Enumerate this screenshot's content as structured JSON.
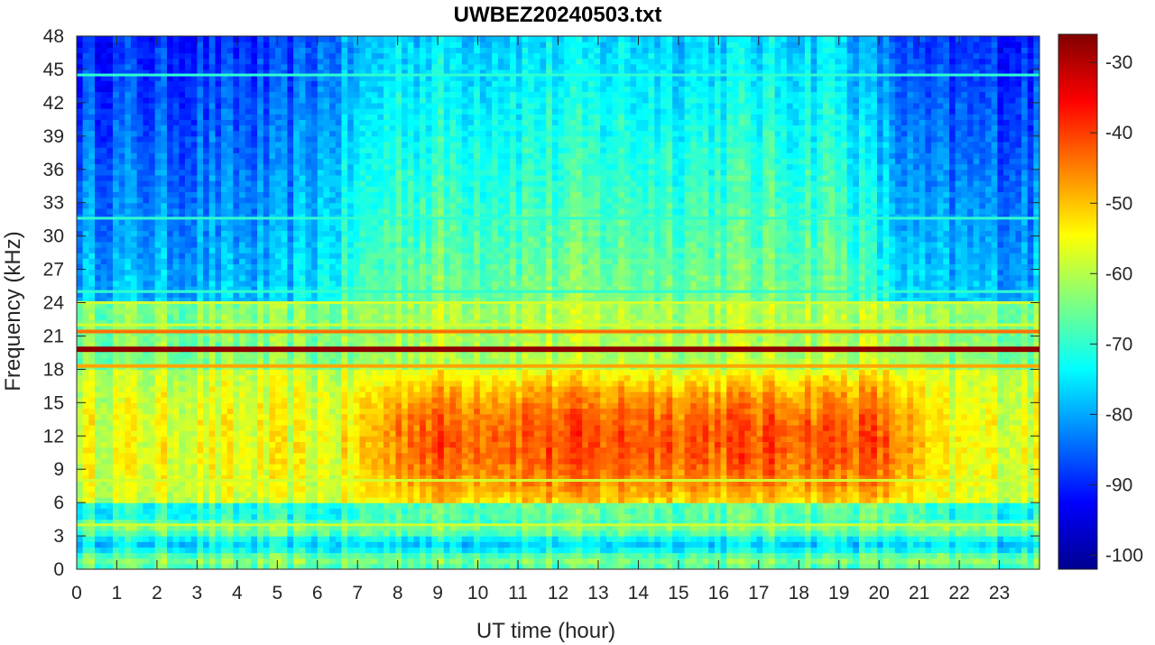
{
  "chart_data": {
    "type": "heatmap",
    "title": "UWBEZ20240503.txt",
    "xlabel": "UT time (hour)",
    "ylabel": "Frequency (kHz)",
    "xlim": [
      0,
      24
    ],
    "ylim": [
      0,
      48
    ],
    "x_ticks": [
      "0",
      "1",
      "2",
      "3",
      "4",
      "5",
      "6",
      "7",
      "8",
      "9",
      "10",
      "11",
      "12",
      "13",
      "14",
      "15",
      "16",
      "17",
      "18",
      "19",
      "20",
      "21",
      "22",
      "23"
    ],
    "y_ticks": [
      "0",
      "3",
      "6",
      "9",
      "12",
      "15",
      "18",
      "21",
      "24",
      "27",
      "30",
      "33",
      "36",
      "39",
      "42",
      "45",
      "48"
    ],
    "colorbar": {
      "colormap": "jet",
      "range": [
        -102,
        -26
      ],
      "ticks": [
        "-100",
        "-90",
        "-80",
        "-70",
        "-60",
        "-50",
        "-40",
        "-30"
      ]
    },
    "features": {
      "strong_lines_khz": [
        19.8,
        21.4,
        18.3
      ],
      "weak_lines_khz": [
        44.5,
        31.6,
        25.0,
        24.0,
        22.0,
        4.0,
        8.0
      ],
      "daytime_enhancement": {
        "x_range_hour": [
          8,
          21
        ],
        "y_range_khz": [
          6,
          18
        ],
        "peak_dbm": -48
      },
      "night_background_dbm": -90,
      "low_band_level_dbm": -62
    }
  }
}
